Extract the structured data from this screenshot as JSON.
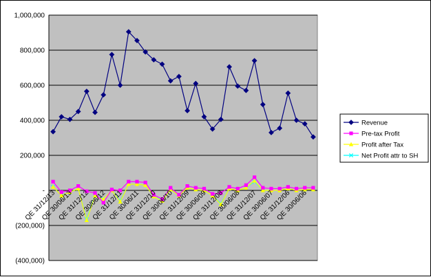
{
  "chart_data": {
    "type": "line",
    "title": "",
    "xlabel": "",
    "ylabel": "",
    "ylim": [
      -400000,
      1000000
    ],
    "yticks": [
      1000000,
      800000,
      600000,
      400000,
      200000,
      0,
      -200000,
      -400000
    ],
    "ytick_labels": [
      "1,000,000",
      "800,000",
      "600,000",
      "400,000",
      "200,000",
      "-",
      "(200,000)",
      "(400,000)"
    ],
    "grid": true,
    "legend_position": "right",
    "colors": {
      "plot_bg": "#c0c0c0",
      "revenue": "#000080",
      "pretax": "#ff00ff",
      "after_tax": "#ffff00",
      "net": "#00ffff"
    },
    "x_labels": [
      {
        "i": 0,
        "text": "QE 31/12/13"
      },
      {
        "i": 2,
        "text": "QE 30/06/13"
      },
      {
        "i": 4,
        "text": "QE 31/12/12"
      },
      {
        "i": 6,
        "text": "QE 30/06/12"
      },
      {
        "i": 8,
        "text": "QE 31/12/11"
      },
      {
        "i": 10,
        "text": "QE 30/06/11"
      },
      {
        "i": 12,
        "text": "QE 31/12/10"
      },
      {
        "i": 14,
        "text": "QE 30/06/10"
      },
      {
        "i": 16,
        "text": "QE 31/12/09"
      },
      {
        "i": 18,
        "text": "QE 30/06/09"
      },
      {
        "i": 20,
        "text": "QE 31/12/08"
      },
      {
        "i": 22,
        "text": "QE 30/06/08"
      },
      {
        "i": 24,
        "text": "QE 31/12/07"
      },
      {
        "i": 26,
        "text": "QE 30/06/07"
      },
      {
        "i": 28,
        "text": "QE 31/12/06"
      },
      {
        "i": 30,
        "text": "QE 30/06/06"
      }
    ],
    "series": [
      {
        "name": "Revenue",
        "marker": "diamond",
        "values": [
          335000,
          420000,
          405000,
          450000,
          565000,
          445000,
          545000,
          775000,
          600000,
          905000,
          855000,
          790000,
          745000,
          720000,
          625000,
          650000,
          455000,
          610000,
          420000,
          350000,
          405000,
          705000,
          595000,
          570000,
          740000,
          490000,
          330000,
          355000,
          555000,
          400000,
          380000,
          305000
        ]
      },
      {
        "name": "Pre-tax Profit",
        "marker": "square",
        "values": [
          50000,
          -10000,
          0,
          25000,
          -5000,
          -15000,
          -70000,
          5000,
          0,
          50000,
          50000,
          45000,
          -25000,
          -50000,
          15000,
          -25000,
          25000,
          15000,
          10000,
          -20000,
          -15000,
          20000,
          10000,
          30000,
          75000,
          15000,
          10000,
          10000,
          20000,
          10000,
          15000,
          15000
        ]
      },
      {
        "name": "Profit after Tax",
        "marker": "triangle",
        "values": [
          20000,
          -30000,
          -10000,
          10000,
          -170000,
          -30000,
          -50000,
          0,
          -65000,
          35000,
          35000,
          30000,
          -35000,
          -60000,
          5000,
          -30000,
          15000,
          5000,
          0,
          -30000,
          -80000,
          10000,
          0,
          15000,
          55000,
          0,
          0,
          0,
          10000,
          0,
          5000,
          5000
        ]
      },
      {
        "name": "Net Profit attr to SH",
        "marker": "x",
        "values": [
          20000,
          -30000,
          -10000,
          10000,
          -165000,
          -25000,
          -50000,
          0,
          -60000,
          35000,
          35000,
          30000,
          -35000,
          -55000,
          5000,
          -30000,
          15000,
          5000,
          0,
          -30000,
          -75000,
          10000,
          0,
          15000,
          50000,
          0,
          0,
          0,
          10000,
          0,
          5000,
          5000
        ]
      }
    ]
  }
}
